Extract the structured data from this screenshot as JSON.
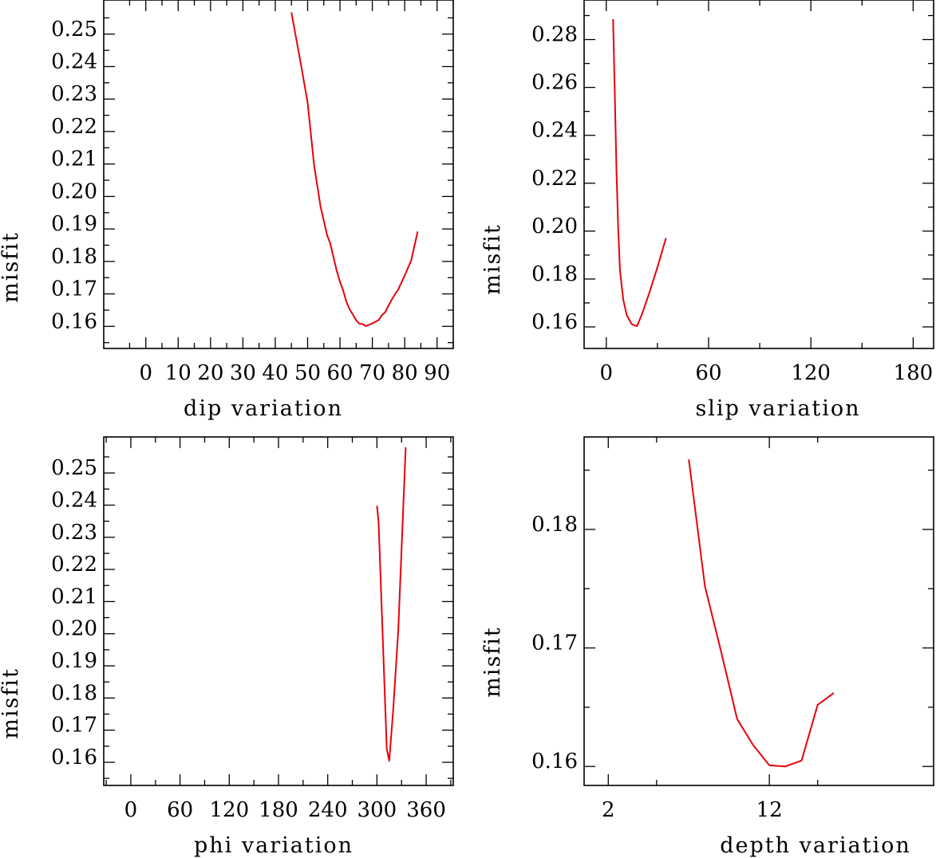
{
  "chart_data": [
    {
      "type": "line",
      "id": "dip",
      "xlabel": "dip    variation",
      "ylabel": "misfit",
      "xlim": [
        -13,
        95
      ],
      "ylim": [
        0.1532,
        0.2605
      ],
      "x_ticks": [
        0,
        10,
        20,
        30,
        40,
        50,
        60,
        70,
        80,
        90
      ],
      "x_tick_labels": [
        "0",
        "10",
        "20",
        "30",
        "40",
        "50",
        "60",
        "70",
        "80",
        "90"
      ],
      "y_ticks": [
        0.16,
        0.17,
        0.18,
        0.19,
        0.2,
        0.21,
        0.22,
        0.23,
        0.24,
        0.25
      ],
      "y_tick_labels": [
        "0.16",
        "0.17",
        "0.18",
        "0.19",
        "0.20",
        "0.21",
        "0.22",
        "0.23",
        "0.24",
        "0.25"
      ],
      "series": [
        {
          "name": "misfit",
          "color": "#e8000b",
          "x": [
            45,
            48,
            50,
            52,
            54,
            56,
            57,
            59,
            60,
            61,
            62,
            63,
            64,
            65,
            66,
            67,
            68,
            70,
            72,
            73,
            74,
            75,
            76,
            77,
            78,
            80,
            82,
            84
          ],
          "y": [
            0.2567,
            0.2403,
            0.2289,
            0.2097,
            0.1969,
            0.1882,
            0.1855,
            0.1771,
            0.1737,
            0.171,
            0.1675,
            0.1652,
            0.1636,
            0.1619,
            0.1608,
            0.1607,
            0.1601,
            0.1609,
            0.162,
            0.1635,
            0.1644,
            0.1664,
            0.1682,
            0.1699,
            0.1714,
            0.1757,
            0.1803,
            0.1892
          ]
        }
      ]
    },
    {
      "type": "line",
      "id": "slip",
      "xlabel": "slip   variation",
      "ylabel": "misfit",
      "xlim": [
        -13,
        192
      ],
      "ylim": [
        0.151,
        0.2965
      ],
      "x_ticks": [
        0,
        60,
        120,
        180
      ],
      "x_tick_labels": [
        "0",
        "60",
        "120",
        "180"
      ],
      "y_ticks": [
        0.16,
        0.18,
        0.2,
        0.22,
        0.24,
        0.26,
        0.28
      ],
      "y_tick_labels": [
        "0.16",
        "0.18",
        "0.20",
        "0.22",
        "0.24",
        "0.26",
        "0.28"
      ],
      "series": [
        {
          "name": "misfit",
          "color": "#e8000b",
          "x": [
            4,
            5,
            6,
            7,
            8,
            10,
            12,
            15,
            18,
            21,
            25,
            30,
            35
          ],
          "y": [
            0.2885,
            0.2566,
            0.2245,
            0.2014,
            0.1837,
            0.1713,
            0.1649,
            0.1611,
            0.1603,
            0.1654,
            0.1737,
            0.1849,
            0.1971
          ]
        }
      ]
    },
    {
      "type": "line",
      "id": "phi",
      "xlabel": "phi    variation",
      "ylabel": "misfit",
      "xlim": [
        -33,
        393
      ],
      "ylim": [
        0.1528,
        0.2612
      ],
      "x_ticks": [
        0,
        60,
        120,
        180,
        240,
        300,
        360
      ],
      "x_tick_labels": [
        "0",
        "60",
        "120",
        "180",
        "240",
        "300",
        "360"
      ],
      "y_ticks": [
        0.16,
        0.17,
        0.18,
        0.19,
        0.2,
        0.21,
        0.22,
        0.23,
        0.24,
        0.25
      ],
      "y_tick_labels": [
        "0.16",
        "0.17",
        "0.18",
        "0.19",
        "0.20",
        "0.21",
        "0.22",
        "0.23",
        "0.24",
        "0.25"
      ],
      "series": [
        {
          "name": "misfit",
          "color": "#e8000b",
          "x": [
            300,
            302,
            312,
            315,
            320,
            326,
            335
          ],
          "y": [
            0.2398,
            0.2349,
            0.1641,
            0.1605,
            0.1768,
            0.2011,
            0.258
          ]
        }
      ]
    },
    {
      "type": "line",
      "id": "depth",
      "xlabel": "depth  variation",
      "ylabel": "misfit",
      "xlim": [
        0.5,
        22.2
      ],
      "ylim": [
        0.1584,
        0.1878
      ],
      "x_ticks": [
        2,
        12
      ],
      "x_tick_labels": [
        "2",
        "12"
      ],
      "y_ticks": [
        0.16,
        0.17,
        0.18
      ],
      "y_tick_labels": [
        "0.16",
        "0.17",
        "0.18"
      ],
      "series": [
        {
          "name": "misfit",
          "color": "#e8000b",
          "x": [
            7,
            8,
            9,
            10,
            11,
            12,
            13,
            14,
            15,
            16
          ],
          "y": [
            0.1859,
            0.1752,
            0.1697,
            0.164,
            0.1618,
            0.1601,
            0.16,
            0.1605,
            0.1652,
            0.1662
          ]
        }
      ]
    }
  ]
}
